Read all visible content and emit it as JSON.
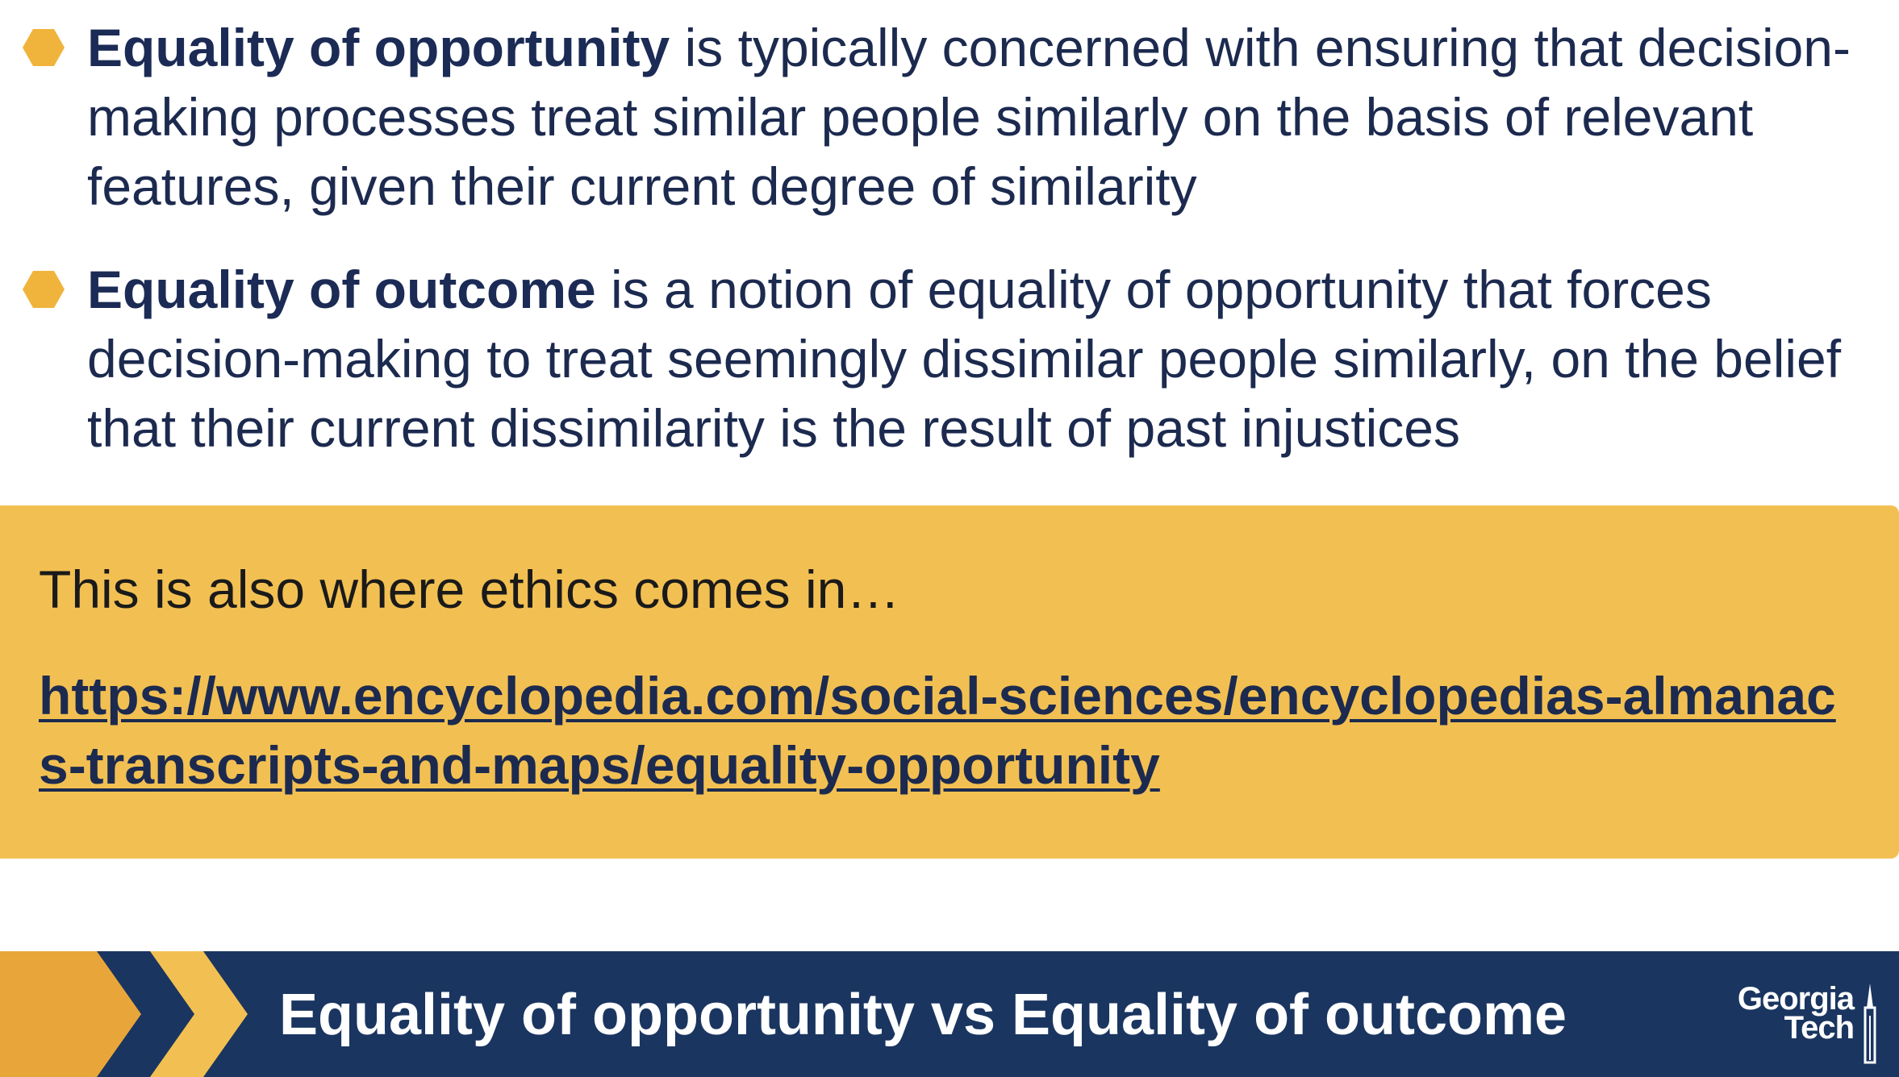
{
  "bullets": [
    {
      "term": "Equality of opportunity",
      "text": " is typically concerned with ensuring that decision-making processes treat similar people similarly on the basis of relevant features, given their current degree of similarity"
    },
    {
      "term": "Equality of outcome",
      "text": " is a notion of equality of opportunity that forces decision-making to treat seemingly dissimilar people similarly, on the belief that their current dissimilarity is the result of past injustices"
    }
  ],
  "callout": {
    "text": "This is also where ethics comes in…",
    "link": "https://www.encyclopedia.com/social-sciences/encyclopedias-almanacs-transcripts-and-maps/equality-opportunity"
  },
  "footer": {
    "title": "Equality of opportunity vs Equality of outcome",
    "logo_line1": "Georgia",
    "logo_line2": "Tech"
  },
  "colors": {
    "navy": "#1a3560",
    "text": "#1c2a4f",
    "gold": "#f2c052",
    "bullet_gold": "#f0b43c"
  },
  "icons": {
    "bullet": "hexagon-bullet-icon",
    "chevrons": "double-chevron-icon",
    "logo": "georgia-tech-logo"
  }
}
